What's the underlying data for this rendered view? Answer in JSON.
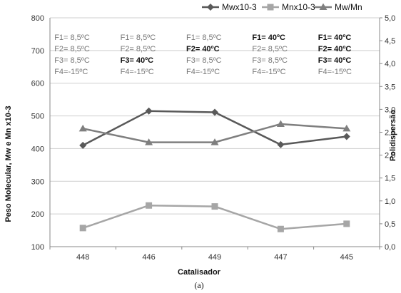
{
  "chart_data": {
    "type": "line",
    "categories": [
      "448",
      "446",
      "449",
      "447",
      "445"
    ],
    "xlabel": "Catalisador",
    "ylabel": "Peso Molecular, Mw e Mn x10-3",
    "y2label": "Polidispersão",
    "ylim": [
      100,
      800
    ],
    "y2lim": [
      0.0,
      5.0
    ],
    "yticks": [
      "100",
      "200",
      "300",
      "400",
      "500",
      "600",
      "700",
      "800"
    ],
    "y2ticks": [
      "0,0",
      "0,5",
      "1,0",
      "1,5",
      "2,0",
      "2,5",
      "3,0",
      "3,5",
      "4,0",
      "4,5",
      "5,0"
    ],
    "grid": "horizontal",
    "legend_position": "top-right",
    "series": [
      {
        "name": "Mwx10-3",
        "axis": "left",
        "color": "#595959",
        "marker": "diamond",
        "values": [
          410,
          515,
          511,
          412,
          437
        ]
      },
      {
        "name": "Mnx10-3",
        "axis": "left",
        "color": "#a6a6a6",
        "marker": "square",
        "values": [
          157,
          226,
          223,
          154,
          170
        ]
      },
      {
        "name": "Mw/Mn",
        "axis": "right",
        "color": "#7f7f7f",
        "marker": "triangle",
        "values": [
          2.58,
          2.28,
          2.28,
          2.68,
          2.58
        ]
      }
    ],
    "annotations": [
      [
        {
          "text": "F1= 8,5ºC",
          "bold": false
        },
        {
          "text": "F2= 8,5ºC",
          "bold": false
        },
        {
          "text": "F3= 8,5ºC",
          "bold": false
        },
        {
          "text": "F4=-15ºC",
          "bold": false
        }
      ],
      [
        {
          "text": "F1= 8,5ºC",
          "bold": false
        },
        {
          "text": "F2= 8,5ºC",
          "bold": false
        },
        {
          "text": "F3= 40ºC",
          "bold": true
        },
        {
          "text": "F4=-15ºC",
          "bold": false
        }
      ],
      [
        {
          "text": "F1= 8,5ºC",
          "bold": false
        },
        {
          "text": "F2= 40ºC",
          "bold": true
        },
        {
          "text": "F3= 8,5ºC",
          "bold": false
        },
        {
          "text": "F4=-15ºC",
          "bold": false
        }
      ],
      [
        {
          "text": "F1= 40ºC",
          "bold": true
        },
        {
          "text": "F2= 8,5ºC",
          "bold": false
        },
        {
          "text": "F3= 8,5ºC",
          "bold": false
        },
        {
          "text": "F4=-15ºC",
          "bold": false
        }
      ],
      [
        {
          "text": "F1= 40ºC",
          "bold": true
        },
        {
          "text": "F2= 40ºC",
          "bold": true
        },
        {
          "text": "F3= 40ºC",
          "bold": true
        },
        {
          "text": "F4=-15ºC",
          "bold": false
        }
      ]
    ]
  },
  "caption": "(a)"
}
